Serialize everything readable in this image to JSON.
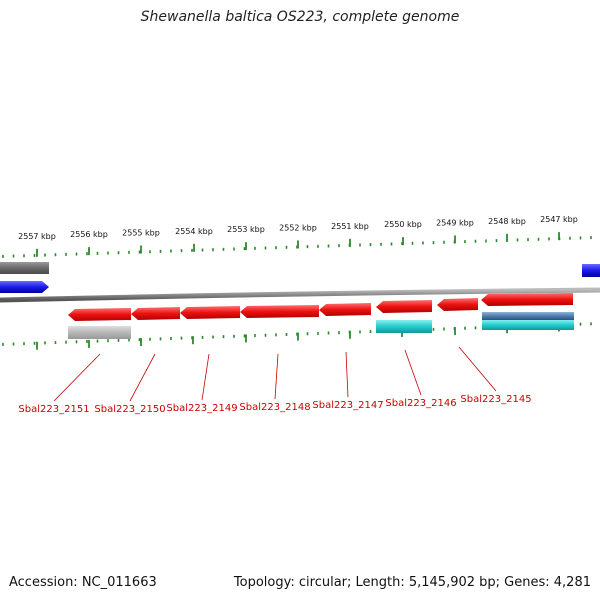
{
  "title": "Shewanella baltica OS223, complete genome",
  "footer": {
    "accession": "Accession: NC_011663",
    "summary": "Topology: circular; Length: 5,145,902 bp; Genes: 4,281"
  },
  "colors": {
    "forward_gene": "#ee1111",
    "reverse_gene": "#1a1aee",
    "rna_gene": "#888888",
    "cyan_feature": "#22cccc",
    "steelblue_feature": "#4f7fb0",
    "gray_feature": "#b8b8b8",
    "tick": "#2a8a2a",
    "backbone": "#888888",
    "label": "#cc0000"
  },
  "tick_labels": [
    "2557 kbp",
    "2556 kbp",
    "2555 kbp",
    "2554 kbp",
    "2553 kbp",
    "2552 kbp",
    "2551 kbp",
    "2550 kbp",
    "2549 kbp",
    "2548 kbp",
    "2547 kbp"
  ],
  "genes": [
    {
      "label": "Sbal223_2151",
      "strand": "forward"
    },
    {
      "label": "Sbal223_2150",
      "strand": "forward"
    },
    {
      "label": "Sbal223_2149",
      "strand": "forward"
    },
    {
      "label": "Sbal223_2148",
      "strand": "forward"
    },
    {
      "label": "Sbal223_2147",
      "strand": "forward"
    },
    {
      "label": "Sbal223_2146",
      "strand": "forward"
    },
    {
      "label": "Sbal223_2145",
      "strand": "forward"
    }
  ]
}
